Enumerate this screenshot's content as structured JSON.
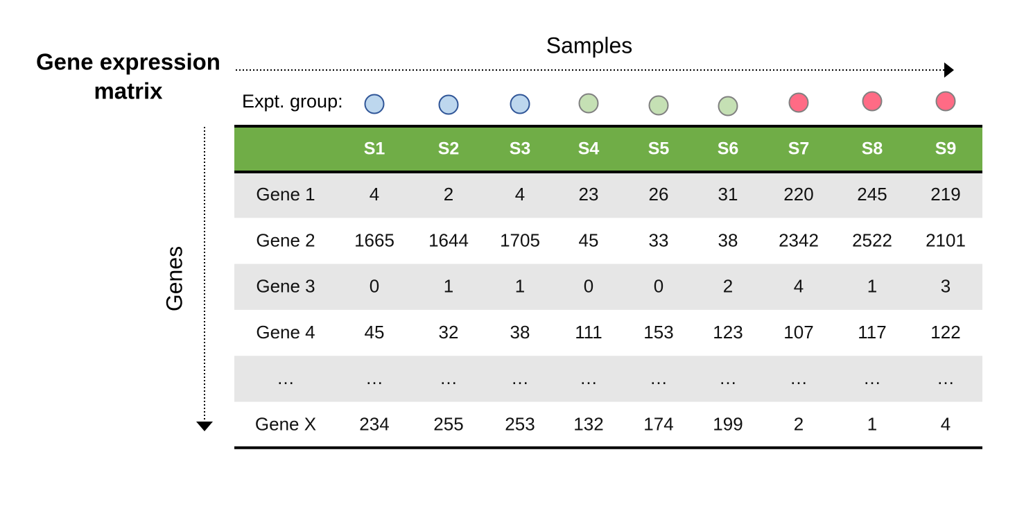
{
  "title": "Gene expression matrix",
  "x_axis_label": "Samples",
  "y_axis_label": "Genes",
  "expt_groups": {
    "label": "Expt. group:",
    "colors": [
      "#bdd7ee",
      "#bdd7ee",
      "#bdd7ee",
      "#c5e0b4",
      "#c5e0b4",
      "#c5e0b4",
      "#ff6b85",
      "#ff6b85",
      "#ff6b85"
    ]
  },
  "table": {
    "header": [
      "",
      "S1",
      "S2",
      "S3",
      "S4",
      "S5",
      "S6",
      "S7",
      "S8",
      "S9"
    ],
    "rows": [
      [
        "Gene 1",
        4,
        2,
        4,
        23,
        26,
        31,
        220,
        245,
        219
      ],
      [
        "Gene 2",
        1665,
        1644,
        1705,
        45,
        33,
        38,
        2342,
        2522,
        2101
      ],
      [
        "Gene 3",
        0,
        1,
        1,
        0,
        0,
        2,
        4,
        1,
        3
      ],
      [
        "Gene 4",
        45,
        32,
        38,
        111,
        153,
        123,
        107,
        117,
        122
      ],
      [
        "…",
        "…",
        "…",
        "…",
        "…",
        "…",
        "…",
        "…",
        "…",
        "…"
      ],
      [
        "Gene X",
        234,
        255,
        253,
        132,
        174,
        199,
        2,
        1,
        4
      ]
    ]
  }
}
